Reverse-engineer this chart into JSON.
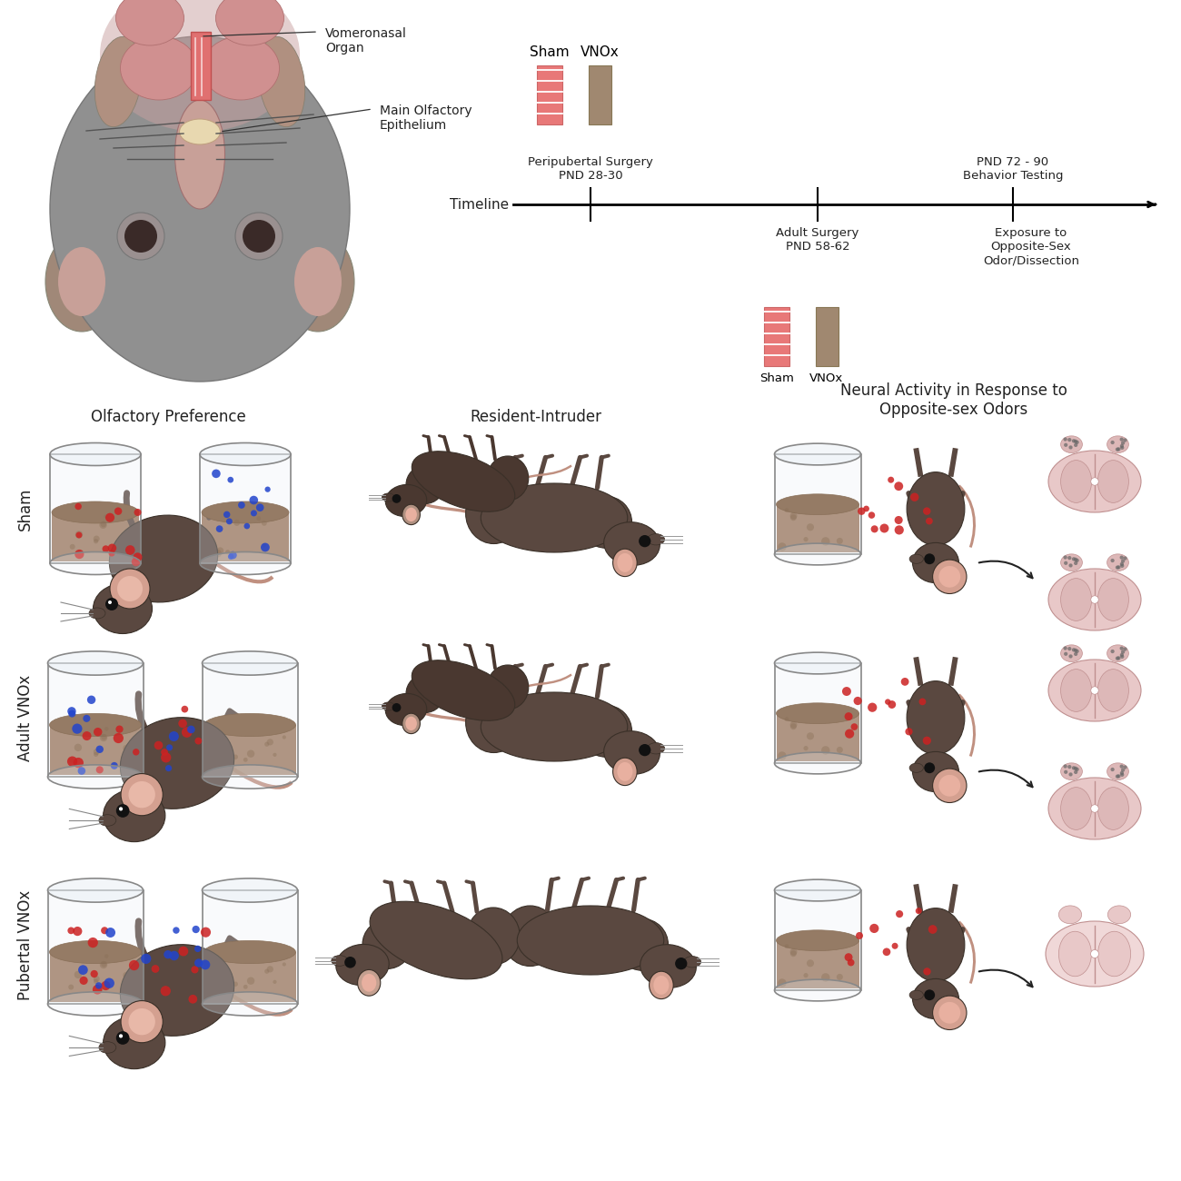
{
  "background_color": "#ffffff",
  "sham_color": "#e87878",
  "vnox_color": "#a08870",
  "dot_red": "#cc2222",
  "dot_blue": "#2244cc",
  "mouse_dark": "#5a4840",
  "mouse_mid": "#6e5848",
  "mouse_light": "#c4a090",
  "mouse_pink": "#d4a090",
  "tail_color": "#c09080",
  "row_labels": [
    "Sham",
    "Adult VNOx",
    "Pubertal VNOx"
  ],
  "col_labels": [
    "Olfactory Preference",
    "Resident-Intruder",
    "Neural Activity in Response to\nOpposite-sex Odors"
  ],
  "timeline_label": "Timeline",
  "t1_label": "Peripubertal Surgery\nPND 28-30",
  "t2_label": "Adult Surgery\nPND 58-62",
  "t3_label": "PND 72 - 90\nBehavior Testing",
  "t4_label": "Exposure to\nOpposite-Sex\nOdor/Dissection",
  "sham_label": "Sham",
  "vnox_label": "VNOx",
  "vno_label": "Vomeronasal\nOrgan",
  "moe_label": "Main Olfactory\nEpithelium",
  "brain_outer": "#e8c0c0",
  "brain_inner": "#dda8a8",
  "brain_dark": "#c89090",
  "jar_glass": "#d8e8f0",
  "jar_fill": "#8B6040",
  "jar_edge": "#999999"
}
